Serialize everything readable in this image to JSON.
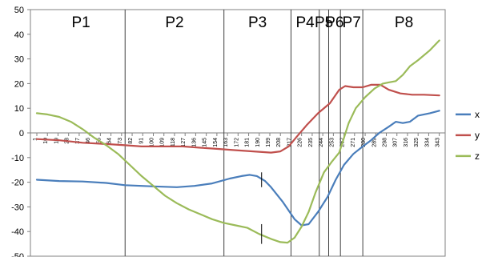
{
  "chart_data": {
    "type": "line",
    "title": "",
    "xlabel": "",
    "ylabel": "",
    "ylim": [
      -50,
      50
    ],
    "yticks": [
      50,
      40,
      30,
      20,
      10,
      0,
      -10,
      -20,
      -30,
      -40,
      -50
    ],
    "xlim": [
      1,
      348
    ],
    "xtick_labels": [
      "1",
      "10",
      "19",
      "28",
      "37",
      "46",
      "55",
      "64",
      "73",
      "82",
      "91",
      "100",
      "109",
      "118",
      "127",
      "136",
      "145",
      "154",
      "163",
      "172",
      "181",
      "190",
      "199",
      "208",
      "217",
      "226",
      "235",
      "244",
      "253",
      "262",
      "271",
      "280",
      "289",
      "298",
      "307",
      "316",
      "325",
      "334",
      "343"
    ],
    "grid": false,
    "legend_position": "right",
    "phase_boundaries": [
      1,
      76,
      160,
      217,
      241,
      249,
      259,
      278,
      348
    ],
    "phases": [
      "P1",
      "P2",
      "P3",
      "P4",
      "P5",
      "P6",
      "P7",
      "P8"
    ],
    "event_markers": [
      {
        "x": 192,
        "ymin": -22,
        "ymax": -16
      },
      {
        "x": 192,
        "ymin": -45,
        "ymax": -37
      }
    ],
    "series": [
      {
        "name": "x",
        "color": "#4a7ebb",
        "points": [
          [
            1,
            -19
          ],
          [
            20,
            -19.5
          ],
          [
            40,
            -19.7
          ],
          [
            60,
            -20.3
          ],
          [
            76,
            -21.2
          ],
          [
            100,
            -21.7
          ],
          [
            120,
            -22
          ],
          [
            135,
            -21.5
          ],
          [
            150,
            -20.5
          ],
          [
            165,
            -18.5
          ],
          [
            175,
            -17.5
          ],
          [
            182,
            -17
          ],
          [
            188,
            -17.5
          ],
          [
            195,
            -19.5
          ],
          [
            200,
            -22
          ],
          [
            210,
            -28
          ],
          [
            220,
            -35
          ],
          [
            226,
            -37.5
          ],
          [
            232,
            -37
          ],
          [
            240,
            -32
          ],
          [
            248,
            -26
          ],
          [
            255,
            -19
          ],
          [
            262,
            -13
          ],
          [
            270,
            -8.5
          ],
          [
            278,
            -5.5
          ],
          [
            285,
            -3
          ],
          [
            292,
            0
          ],
          [
            300,
            2.5
          ],
          [
            306,
            4.5
          ],
          [
            312,
            4
          ],
          [
            318,
            4.5
          ],
          [
            325,
            7
          ],
          [
            335,
            8
          ],
          [
            343,
            9
          ]
        ]
      },
      {
        "name": "y",
        "color": "#c0504d",
        "points": [
          [
            1,
            -2.5
          ],
          [
            20,
            -3
          ],
          [
            40,
            -4
          ],
          [
            60,
            -4.5
          ],
          [
            76,
            -5
          ],
          [
            90,
            -5.5
          ],
          [
            110,
            -5.5
          ],
          [
            125,
            -5.5
          ],
          [
            140,
            -6
          ],
          [
            155,
            -6.5
          ],
          [
            170,
            -7
          ],
          [
            185,
            -7.5
          ],
          [
            200,
            -8
          ],
          [
            208,
            -7.5
          ],
          [
            215,
            -5.5
          ],
          [
            222,
            -1.5
          ],
          [
            230,
            3
          ],
          [
            240,
            8
          ],
          [
            250,
            12
          ],
          [
            258,
            17.5
          ],
          [
            263,
            19
          ],
          [
            270,
            18.5
          ],
          [
            278,
            18.5
          ],
          [
            285,
            19.5
          ],
          [
            293,
            19.5
          ],
          [
            300,
            17.5
          ],
          [
            310,
            16
          ],
          [
            320,
            15.5
          ],
          [
            330,
            15.5
          ],
          [
            343,
            15.2
          ]
        ]
      },
      {
        "name": "z",
        "color": "#9bbb59",
        "points": [
          [
            1,
            8
          ],
          [
            10,
            7.5
          ],
          [
            20,
            6.5
          ],
          [
            30,
            4.5
          ],
          [
            40,
            1.5
          ],
          [
            50,
            -2
          ],
          [
            60,
            -5
          ],
          [
            70,
            -8.5
          ],
          [
            80,
            -13
          ],
          [
            90,
            -17.5
          ],
          [
            100,
            -21.5
          ],
          [
            110,
            -25.5
          ],
          [
            120,
            -28.5
          ],
          [
            130,
            -31
          ],
          [
            140,
            -33
          ],
          [
            150,
            -35
          ],
          [
            160,
            -36.5
          ],
          [
            170,
            -37.5
          ],
          [
            180,
            -38.5
          ],
          [
            190,
            -41
          ],
          [
            200,
            -43
          ],
          [
            208,
            -44.3
          ],
          [
            214,
            -44.5
          ],
          [
            220,
            -42.5
          ],
          [
            226,
            -38
          ],
          [
            232,
            -32
          ],
          [
            238,
            -24
          ],
          [
            245,
            -16
          ],
          [
            252,
            -11.5
          ],
          [
            258,
            -8
          ],
          [
            262,
            -2
          ],
          [
            266,
            4
          ],
          [
            272,
            10
          ],
          [
            280,
            14.5
          ],
          [
            288,
            18
          ],
          [
            295,
            20
          ],
          [
            300,
            20.5
          ],
          [
            306,
            21
          ],
          [
            312,
            23.5
          ],
          [
            318,
            27
          ],
          [
            325,
            29.5
          ],
          [
            335,
            33.5
          ],
          [
            343,
            37.5
          ]
        ]
      }
    ]
  }
}
